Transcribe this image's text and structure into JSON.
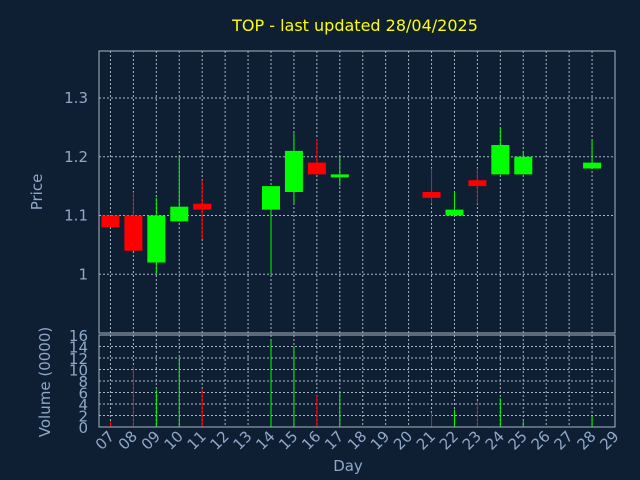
{
  "chart_data": [
    {
      "type": "candlestick",
      "title": "TOP - last updated 28/04/2025",
      "ylabel": "Price",
      "ylim": [
        0.9,
        1.38
      ],
      "yticks": [
        "1",
        "1.1",
        "1.2",
        "1.3"
      ],
      "ytick_values": [
        1.0,
        1.1,
        1.2,
        1.3
      ],
      "xlim": [
        6.5,
        29
      ],
      "colors": {
        "up": "#00ff00",
        "down": "#ff0000",
        "background": "#0f1f33",
        "grid": "#a8b4c4",
        "text": "#8fa8c8",
        "title": "#ffff00"
      },
      "candles": [
        {
          "day": 7,
          "open": 1.1,
          "high": 1.1,
          "low": 1.08,
          "close": 1.08
        },
        {
          "day": 8,
          "open": 1.1,
          "high": 1.14,
          "low": 1.04,
          "close": 1.04
        },
        {
          "day": 9,
          "open": 1.02,
          "high": 1.13,
          "low": 1.0,
          "close": 1.1
        },
        {
          "day": 10,
          "open": 1.09,
          "high": 1.2,
          "low": 1.09,
          "close": 1.115
        },
        {
          "day": 11,
          "open": 1.12,
          "high": 1.16,
          "low": 1.06,
          "close": 1.11
        },
        {
          "day": 14,
          "open": 1.11,
          "high": 1.15,
          "low": 1.0,
          "close": 1.15
        },
        {
          "day": 15,
          "open": 1.14,
          "high": 1.24,
          "low": 1.12,
          "close": 1.21
        },
        {
          "day": 16,
          "open": 1.19,
          "high": 1.23,
          "low": 1.17,
          "close": 1.17
        },
        {
          "day": 17,
          "open": 1.165,
          "high": 1.2,
          "low": 1.15,
          "close": 1.17
        },
        {
          "day": 21,
          "open": 1.14,
          "high": 1.18,
          "low": 1.12,
          "close": 1.13
        },
        {
          "day": 22,
          "open": 1.1,
          "high": 1.14,
          "low": 1.1,
          "close": 1.11
        },
        {
          "day": 23,
          "open": 1.16,
          "high": 1.18,
          "low": 1.12,
          "close": 1.15
        },
        {
          "day": 24,
          "open": 1.17,
          "high": 1.25,
          "low": 1.17,
          "close": 1.22
        },
        {
          "day": 25,
          "open": 1.17,
          "high": 1.21,
          "low": 1.17,
          "close": 1.2
        },
        {
          "day": 28,
          "open": 1.18,
          "high": 1.23,
          "low": 1.18,
          "close": 1.19
        }
      ]
    },
    {
      "type": "bar",
      "xlabel": "Day",
      "ylabel": "Volume (0000)",
      "ylim": [
        0,
        16
      ],
      "yticks": [
        "0",
        "2",
        "4",
        "6",
        "8",
        "10",
        "12",
        "14",
        "16"
      ],
      "ytick_values": [
        0,
        2,
        4,
        6,
        8,
        10,
        12,
        14,
        16
      ],
      "categories": [
        "07",
        "08",
        "09",
        "10",
        "11",
        "12",
        "13",
        "14",
        "15",
        "16",
        "17",
        "18",
        "19",
        "20",
        "21",
        "22",
        "23",
        "24",
        "25",
        "26",
        "27",
        "28",
        "29"
      ],
      "xtick_values": [
        7,
        8,
        9,
        10,
        11,
        12,
        13,
        14,
        15,
        16,
        17,
        18,
        19,
        20,
        21,
        22,
        23,
        24,
        25,
        26,
        27,
        28,
        29
      ],
      "bars": [
        {
          "day": 7,
          "value": 1.0,
          "color": "#ff0000"
        },
        {
          "day": 8,
          "value": 10.5,
          "color": "#ff0000"
        },
        {
          "day": 9,
          "value": 6.5,
          "color": "#00ff00"
        },
        {
          "day": 10,
          "value": 12.0,
          "color": "#00ff00"
        },
        {
          "day": 11,
          "value": 6.5,
          "color": "#ff0000"
        },
        {
          "day": 14,
          "value": 15.0,
          "color": "#00ff00"
        },
        {
          "day": 15,
          "value": 14.0,
          "color": "#00ff00"
        },
        {
          "day": 16,
          "value": 5.5,
          "color": "#ff0000"
        },
        {
          "day": 17,
          "value": 6.0,
          "color": "#00ff00"
        },
        {
          "day": 21,
          "value": 2.5,
          "color": "#ff0000"
        },
        {
          "day": 22,
          "value": 3.0,
          "color": "#00ff00"
        },
        {
          "day": 23,
          "value": 4.5,
          "color": "#ff0000"
        },
        {
          "day": 24,
          "value": 5.0,
          "color": "#00ff00"
        },
        {
          "day": 25,
          "value": 1.0,
          "color": "#00ff00"
        },
        {
          "day": 28,
          "value": 2.0,
          "color": "#00ff00"
        }
      ]
    }
  ]
}
